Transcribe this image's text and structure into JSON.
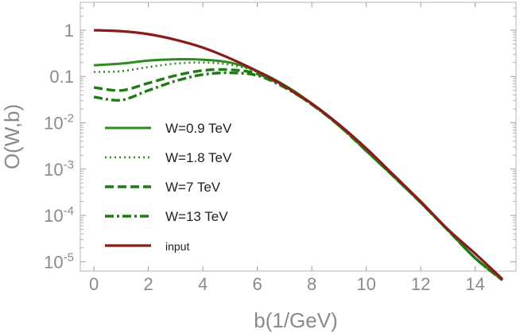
{
  "chart_data": {
    "type": "line",
    "title": "",
    "xlabel": "b(1/GeV)",
    "ylabel": "O(W,b)",
    "xlim": [
      -0.5,
      15.5
    ],
    "ylim_log10": [
      -5.2,
      0.6
    ],
    "yscale": "log",
    "x_ticks": [
      0,
      2,
      4,
      6,
      8,
      10,
      12,
      14
    ],
    "x_tick_labels": [
      "0",
      "2",
      "4",
      "6",
      "8",
      "10",
      "12",
      "14"
    ],
    "y_ticks": [
      {
        "value": 1,
        "mant": "1",
        "exp": ""
      },
      {
        "value": 0.1,
        "mant": "0.1",
        "exp": ""
      },
      {
        "value": 0.01,
        "mant": "10",
        "exp": "-2"
      },
      {
        "value": 0.001,
        "mant": "10",
        "exp": "-3"
      },
      {
        "value": 0.0001,
        "mant": "10",
        "exp": "-4"
      },
      {
        "value": 1e-05,
        "mant": "10",
        "exp": "-5"
      }
    ],
    "legend_position": "left",
    "series": [
      {
        "name": "W=0.9 TeV",
        "color": "#2e8b1f",
        "dash": "solid",
        "x": [
          0,
          1,
          2,
          3,
          4,
          5,
          6,
          7,
          8,
          9,
          10,
          11,
          12,
          13,
          14,
          15
        ],
        "y": [
          0.175,
          0.19,
          0.22,
          0.235,
          0.23,
          0.2,
          0.13,
          0.065,
          0.026,
          0.0088,
          0.0025,
          0.0007,
          0.00019,
          4.8e-05,
          1.2e-05,
          4e-06
        ]
      },
      {
        "name": "W=1.8 TeV",
        "color": "#2e8b1f",
        "dash": "dot",
        "x": [
          0,
          1,
          2,
          3,
          4,
          5,
          6,
          7,
          8,
          9,
          10,
          11,
          12,
          13,
          14,
          15
        ],
        "y": [
          0.125,
          0.13,
          0.16,
          0.19,
          0.2,
          0.18,
          0.125,
          0.063,
          0.026,
          0.0088,
          0.0025,
          0.0007,
          0.00019,
          4.8e-05,
          1.2e-05,
          4e-06
        ]
      },
      {
        "name": "W=7 TeV",
        "color": "#1f7a14",
        "dash": "dash",
        "x": [
          0,
          1,
          2,
          3,
          4,
          5,
          6,
          7,
          8,
          9,
          10,
          11,
          12,
          13,
          14,
          15
        ],
        "y": [
          0.058,
          0.05,
          0.072,
          0.105,
          0.135,
          0.14,
          0.115,
          0.06,
          0.025,
          0.0087,
          0.0025,
          0.0007,
          0.00019,
          4.8e-05,
          1.2e-05,
          4e-06
        ]
      },
      {
        "name": "W=13 TeV",
        "color": "#1f7a14",
        "dash": "dashdot",
        "x": [
          0,
          1,
          2,
          3,
          4,
          5,
          6,
          7,
          8,
          9,
          10,
          11,
          12,
          13,
          14,
          15
        ],
        "y": [
          0.036,
          0.031,
          0.05,
          0.08,
          0.11,
          0.12,
          0.105,
          0.058,
          0.025,
          0.0087,
          0.0025,
          0.0007,
          0.00019,
          4.8e-05,
          1.2e-05,
          4e-06
        ]
      },
      {
        "name": "input",
        "color": "#8b1a1a",
        "dash": "solid",
        "x": [
          0,
          1,
          2,
          3,
          4,
          5,
          6,
          7,
          8,
          9,
          10,
          11,
          12,
          13,
          14,
          15
        ],
        "y": [
          1.0,
          0.95,
          0.82,
          0.62,
          0.42,
          0.245,
          0.13,
          0.062,
          0.026,
          0.0092,
          0.0028,
          0.00075,
          0.0002,
          5e-05,
          1.5e-05,
          4.2e-06
        ]
      }
    ]
  }
}
